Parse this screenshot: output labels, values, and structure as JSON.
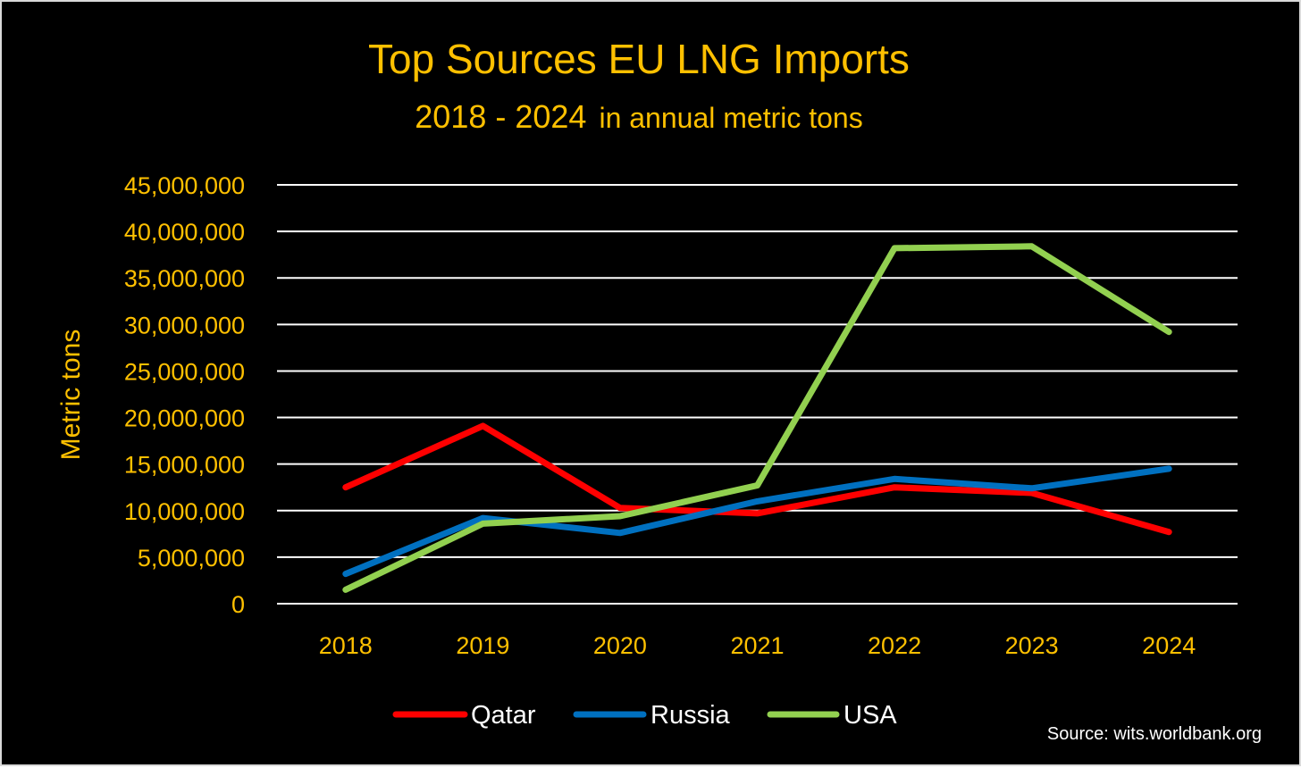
{
  "chart_data": {
    "type": "line",
    "title": "Top Sources EU LNG Imports",
    "subtitle_years": "2018 - 2024",
    "subtitle_rest": "in annual metric tons",
    "xlabel": "",
    "ylabel": "Metric tons",
    "categories": [
      "2018",
      "2019",
      "2020",
      "2021",
      "2022",
      "2023",
      "2024"
    ],
    "ylim": [
      0,
      45000000
    ],
    "yticks": [
      0,
      5000000,
      10000000,
      15000000,
      20000000,
      25000000,
      30000000,
      35000000,
      40000000,
      45000000
    ],
    "ytick_labels": [
      "0",
      "5,000,000",
      "10,000,000",
      "15,000,000",
      "20,000,000",
      "25,000,000",
      "30,000,000",
      "35,000,000",
      "40,000,000",
      "45,000,000"
    ],
    "grid": true,
    "legend_position": "bottom",
    "series": [
      {
        "name": "Qatar",
        "color": "#ff0000",
        "values": [
          12500000,
          19100000,
          10300000,
          9700000,
          12500000,
          11900000,
          7700000
        ]
      },
      {
        "name": "Russia",
        "color": "#0070c0",
        "values": [
          3200000,
          9200000,
          7600000,
          11000000,
          13400000,
          12400000,
          14500000
        ]
      },
      {
        "name": "USA",
        "color": "#92d050",
        "values": [
          1500000,
          8600000,
          9400000,
          12700000,
          38200000,
          38400000,
          29200000
        ]
      }
    ],
    "source": "Source: wits.worldbank.org"
  }
}
